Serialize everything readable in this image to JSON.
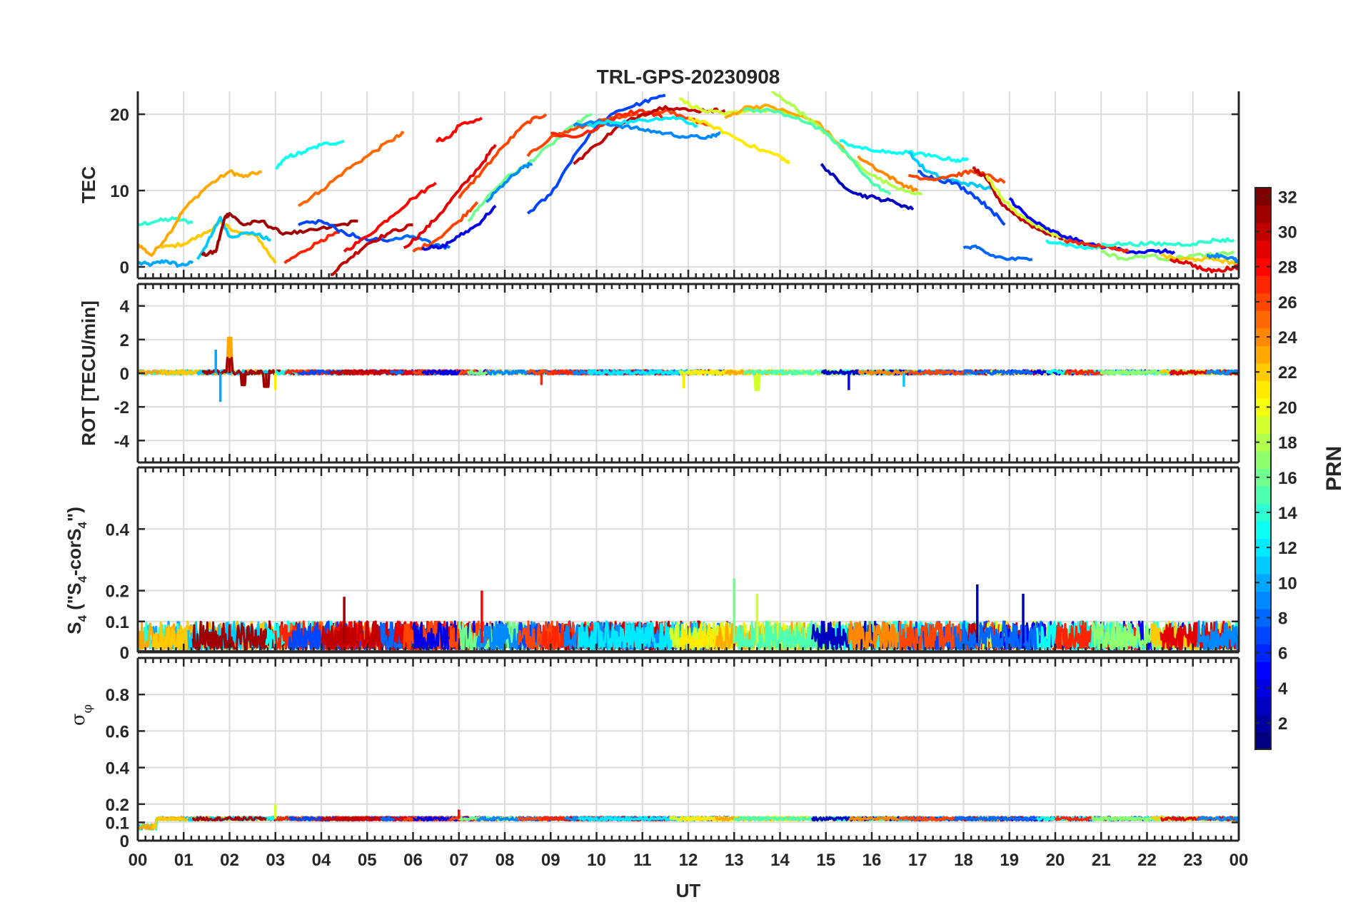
{
  "chart_data": [
    {
      "type": "line",
      "panel": "TEC",
      "title": "TRL-GPS-20230908",
      "ylabel": "TEC",
      "ylim": [
        -1.5,
        23
      ],
      "yticks": [
        0,
        10,
        20
      ],
      "ytick_labels": [
        "0",
        "10",
        "20"
      ],
      "xlim": [
        0,
        24
      ],
      "grid": true,
      "series": [
        {
          "prn": 10,
          "x": [
            0.0,
            0.3,
            0.6,
            0.9,
            1.2
          ],
          "y": [
            0.5,
            0.3,
            0.8,
            0.2,
            0.5
          ]
        },
        {
          "prn": 14,
          "x": [
            0.0,
            0.4,
            0.8,
            1.2
          ],
          "y": [
            5.5,
            6.0,
            6.3,
            5.8
          ]
        },
        {
          "prn": 23,
          "x": [
            0.0,
            0.3,
            0.7,
            1.0,
            1.5,
            2.0,
            2.3,
            2.7
          ],
          "y": [
            3.0,
            1.5,
            4.5,
            7.5,
            10.5,
            12.5,
            11.8,
            12.5
          ]
        },
        {
          "prn": 22,
          "x": [
            0.5,
            1.0,
            1.5,
            1.8,
            2.2,
            2.6,
            3.0
          ],
          "y": [
            2.5,
            3.0,
            4.5,
            5.8,
            4.5,
            4.0,
            0.5
          ]
        },
        {
          "prn": 11,
          "x": [
            1.3,
            1.6,
            1.8,
            2.0,
            2.5,
            2.9
          ],
          "y": [
            1.0,
            4.0,
            6.5,
            4.0,
            4.5,
            3.5
          ]
        },
        {
          "prn": 31,
          "x": [
            1.4,
            1.7,
            1.9,
            2.0,
            2.3,
            2.7,
            3.1,
            3.6,
            4.2,
            4.8
          ],
          "y": [
            1.5,
            2.0,
            6.5,
            7.0,
            5.5,
            6.0,
            4.5,
            4.5,
            5.2,
            6.0
          ]
        },
        {
          "prn": 13,
          "x": [
            3.0,
            3.3,
            3.6,
            4.0,
            4.5
          ],
          "y": [
            13.0,
            14.5,
            15.0,
            16.0,
            16.5
          ]
        },
        {
          "prn": 25,
          "x": [
            3.5,
            4.0,
            4.5,
            5.0,
            5.5,
            5.8
          ],
          "y": [
            8.0,
            10.0,
            12.5,
            14.5,
            16.5,
            17.5
          ]
        },
        {
          "prn": 27,
          "x": [
            3.2,
            3.6,
            4.0,
            4.4
          ],
          "y": [
            0.5,
            2.0,
            3.5,
            4.5
          ]
        },
        {
          "prn": 7,
          "x": [
            3.5,
            4.0,
            4.5,
            5.0,
            5.5
          ],
          "y": [
            5.5,
            6.0,
            4.5,
            3.5,
            3.5
          ]
        },
        {
          "prn": 28,
          "x": [
            4.5,
            5.0,
            5.5,
            6.0,
            6.5
          ],
          "y": [
            2.0,
            4.0,
            6.5,
            9.0,
            11.0
          ]
        },
        {
          "prn": 30,
          "x": [
            4.2,
            4.6,
            5.0,
            5.5,
            6.0
          ],
          "y": [
            -1.0,
            1.0,
            3.0,
            4.5,
            5.5
          ]
        },
        {
          "prn": 28,
          "x": [
            6.5,
            6.8,
            7.0,
            7.5
          ],
          "y": [
            16.5,
            17.0,
            18.5,
            19.5
          ]
        },
        {
          "prn": 8,
          "x": [
            5.5,
            6.0,
            6.4,
            6.8
          ],
          "y": [
            3.5,
            4.0,
            3.0,
            2.5
          ]
        },
        {
          "prn": 29,
          "x": [
            5.8,
            6.2,
            6.6,
            7.0,
            7.5,
            7.8
          ],
          "y": [
            2.5,
            4.5,
            7.0,
            10.0,
            13.5,
            16.0
          ]
        },
        {
          "prn": 26,
          "x": [
            6.0,
            6.5,
            7.0,
            7.4
          ],
          "y": [
            2.0,
            3.5,
            6.0,
            8.5
          ]
        },
        {
          "prn": 4,
          "x": [
            6.2,
            6.6,
            7.0,
            7.4,
            7.8
          ],
          "y": [
            2.5,
            2.5,
            4.0,
            5.5,
            8.0
          ]
        },
        {
          "prn": 26,
          "x": [
            7.0,
            7.5,
            8.0,
            8.5,
            8.9
          ],
          "y": [
            9.0,
            12.5,
            16.0,
            19.0,
            20.0
          ]
        },
        {
          "prn": 16,
          "x": [
            7.2,
            7.6,
            8.0,
            8.5,
            9.0,
            9.5,
            9.9
          ],
          "y": [
            6.0,
            9.0,
            11.5,
            13.5,
            16.0,
            18.5,
            20.0
          ]
        },
        {
          "prn": 9,
          "x": [
            7.6,
            8.0,
            8.4,
            8.6
          ],
          "y": [
            8.5,
            11.0,
            13.0,
            13.5
          ]
        },
        {
          "prn": 7,
          "x": [
            8.5,
            9.0,
            9.5,
            10.0,
            10.5,
            11.0,
            11.5
          ],
          "y": [
            7.0,
            9.5,
            14.5,
            18.5,
            20.5,
            21.5,
            22.5
          ]
        },
        {
          "prn": 26,
          "x": [
            8.5,
            9.0,
            9.5,
            10.0,
            10.5,
            11.0,
            11.5,
            12.0,
            12.5
          ],
          "y": [
            14.5,
            17.0,
            18.0,
            19.0,
            19.5,
            20.0,
            20.5,
            19.5,
            18.5
          ]
        },
        {
          "prn": 27,
          "x": [
            9.0,
            9.5,
            10.0,
            10.5,
            11.0,
            11.5
          ],
          "y": [
            17.5,
            17.0,
            18.0,
            20.0,
            20.5,
            19.5
          ]
        },
        {
          "prn": 30,
          "x": [
            9.5,
            10.0,
            10.5,
            11.0,
            11.5,
            12.0,
            12.5,
            12.8
          ],
          "y": [
            13.5,
            16.0,
            18.5,
            20.0,
            21.0,
            20.5,
            20.5,
            20.5
          ]
        },
        {
          "prn": 9,
          "x": [
            9.5,
            10.0,
            10.5,
            11.0,
            11.5,
            12.0,
            12.5,
            12.7
          ],
          "y": [
            18.5,
            19.0,
            18.5,
            18.0,
            17.5,
            17.0,
            17.0,
            17.5
          ]
        },
        {
          "prn": 12,
          "x": [
            9.8,
            10.3,
            10.8,
            11.3,
            11.8,
            12.2
          ],
          "y": [
            18.5,
            19.0,
            19.0,
            19.5,
            19.5,
            18.5
          ]
        },
        {
          "prn": 19,
          "x": [
            11.8,
            12.3,
            12.8,
            13.3,
            13.8,
            14.3,
            14.8
          ],
          "y": [
            22.0,
            20.5,
            20.0,
            20.5,
            20.5,
            20.0,
            19.0
          ]
        },
        {
          "prn": 21,
          "x": [
            12.0,
            12.5,
            13.0,
            13.5,
            14.0,
            14.2
          ],
          "y": [
            19.5,
            18.5,
            17.0,
            15.5,
            14.5,
            13.5
          ]
        },
        {
          "prn": 23,
          "x": [
            12.8,
            13.3,
            13.8,
            14.3,
            14.8,
            15.3,
            15.7
          ],
          "y": [
            19.5,
            21.0,
            21.0,
            20.0,
            19.0,
            16.0,
            13.0
          ]
        },
        {
          "prn": 18,
          "x": [
            13.8,
            14.2,
            14.6,
            15.0,
            15.5,
            16.0,
            16.5,
            17.1
          ],
          "y": [
            23.0,
            21.5,
            19.5,
            17.5,
            14.5,
            12.0,
            10.5,
            9.5
          ]
        },
        {
          "prn": 15,
          "x": [
            13.2,
            13.8,
            14.4,
            15.0,
            15.5,
            16.0,
            16.4
          ],
          "y": [
            20.5,
            20.5,
            19.5,
            17.5,
            14.5,
            11.0,
            9.5
          ]
        },
        {
          "prn": 13,
          "x": [
            15.3,
            15.8,
            16.3,
            16.8,
            17.3,
            17.8,
            18.1
          ],
          "y": [
            16.5,
            15.5,
            15.0,
            15.0,
            14.5,
            14.0,
            14.0
          ]
        },
        {
          "prn": 3,
          "x": [
            14.9,
            15.3,
            15.7,
            16.1,
            16.5,
            16.9
          ],
          "y": [
            13.5,
            11.0,
            9.5,
            9.0,
            8.5,
            7.5
          ]
        },
        {
          "prn": 24,
          "x": [
            15.7,
            16.2,
            16.6,
            17.0
          ],
          "y": [
            14.5,
            12.5,
            11.0,
            10.0
          ]
        },
        {
          "prn": 11,
          "x": [
            16.8,
            17.2,
            17.6,
            18.0,
            18.4,
            18.7
          ],
          "y": [
            15.0,
            12.5,
            11.5,
            11.0,
            10.5,
            10.0
          ]
        },
        {
          "prn": 7,
          "x": [
            17.0,
            17.4,
            17.8,
            18.2,
            18.6,
            18.9
          ],
          "y": [
            12.5,
            11.5,
            11.0,
            9.5,
            7.5,
            5.5
          ]
        },
        {
          "prn": 26,
          "x": [
            16.8,
            17.3,
            17.8,
            18.2,
            18.5,
            18.9
          ],
          "y": [
            12.0,
            11.5,
            12.0,
            12.5,
            12.0,
            11.0
          ]
        },
        {
          "prn": 30,
          "x": [
            18.2,
            18.5,
            18.8,
            19.2,
            19.6,
            20.0,
            20.4
          ],
          "y": [
            13.0,
            11.5,
            8.5,
            6.5,
            5.0,
            4.0,
            3.5
          ]
        },
        {
          "prn": 19,
          "x": [
            18.5,
            18.9,
            19.3,
            19.7,
            20.1,
            20.6,
            21.0
          ],
          "y": [
            12.0,
            8.5,
            6.5,
            5.0,
            4.0,
            3.0,
            2.5
          ]
        },
        {
          "prn": 5,
          "x": [
            19.0,
            19.4,
            19.8,
            20.2,
            20.7,
            21.2,
            21.7,
            22.2,
            22.6
          ],
          "y": [
            9.0,
            6.5,
            5.0,
            4.0,
            3.0,
            2.5,
            2.0,
            2.0,
            2.0
          ]
        },
        {
          "prn": 8,
          "x": [
            18.0,
            18.3,
            18.6,
            19.0,
            19.5
          ],
          "y": [
            2.5,
            2.5,
            1.5,
            1.0,
            1.0
          ]
        },
        {
          "prn": 13,
          "x": [
            19.8,
            20.2,
            20.6,
            21.0
          ],
          "y": [
            3.5,
            3.0,
            2.5,
            2.5
          ]
        },
        {
          "prn": 27,
          "x": [
            20.2,
            20.7,
            21.2,
            21.6
          ],
          "y": [
            3.5,
            3.0,
            2.5,
            2.0
          ]
        },
        {
          "prn": 14,
          "x": [
            21.0,
            21.5,
            22.0,
            22.5,
            23.0,
            23.5,
            23.9
          ],
          "y": [
            3.0,
            3.0,
            3.0,
            3.0,
            3.0,
            3.5,
            3.5
          ]
        },
        {
          "prn": 17,
          "x": [
            21.0,
            21.5,
            22.0,
            22.5,
            23.0,
            23.5,
            23.9
          ],
          "y": [
            2.0,
            1.0,
            1.5,
            1.0,
            1.5,
            1.5,
            2.0
          ]
        },
        {
          "prn": 22,
          "x": [
            22.3,
            22.7,
            23.1,
            23.5,
            23.9,
            24.0
          ],
          "y": [
            1.5,
            1.0,
            1.0,
            1.0,
            0.5,
            0.5
          ]
        },
        {
          "prn": 29,
          "x": [
            22.5,
            22.9,
            23.3,
            23.6,
            23.9,
            24.0
          ],
          "y": [
            1.0,
            0.5,
            -0.5,
            -0.5,
            0.0,
            0.0
          ]
        },
        {
          "prn": 9,
          "x": [
            23.3,
            23.6,
            23.9,
            24.0
          ],
          "y": [
            1.5,
            1.5,
            1.0,
            0.5
          ]
        }
      ]
    },
    {
      "type": "line",
      "panel": "ROT",
      "ylabel": "ROT [TECU/min]",
      "ylim": [
        -5.3,
        5.3
      ],
      "yticks": [
        -4,
        -2,
        0,
        2,
        4
      ],
      "ytick_labels": [
        "-4",
        "-2",
        "0",
        "2",
        "4"
      ],
      "xlim": [
        0,
        24
      ],
      "grid": true,
      "noise_level": 0.06,
      "spikes": [
        {
          "x": 1.7,
          "y": 1.4,
          "prn": 10
        },
        {
          "x": 1.8,
          "y": -1.7,
          "prn": 10
        },
        {
          "x": 2.0,
          "y": 2.1,
          "prn": 23
        },
        {
          "x": 2.0,
          "y": 0.9,
          "prn": 31
        },
        {
          "x": 2.3,
          "y": -0.7,
          "prn": 31
        },
        {
          "x": 2.8,
          "y": -0.8,
          "prn": 31
        },
        {
          "x": 3.0,
          "y": -1.0,
          "prn": 21
        },
        {
          "x": 8.8,
          "y": -0.7,
          "prn": 27
        },
        {
          "x": 11.9,
          "y": -0.9,
          "prn": 21
        },
        {
          "x": 13.5,
          "y": -1.0,
          "prn": 19
        },
        {
          "x": 15.5,
          "y": -1.0,
          "prn": 5
        },
        {
          "x": 16.7,
          "y": -0.8,
          "prn": 11
        }
      ]
    },
    {
      "type": "line",
      "panel": "S4",
      "ylabel": "S_4 (\"S_4-corS_4\")",
      "ylabel_parts": [
        "S",
        "4",
        " (\"S",
        "4",
        "-corS",
        "4",
        "\")"
      ],
      "ylim": [
        0,
        0.6
      ],
      "yticks": [
        0,
        0.1,
        0.2,
        0.4
      ],
      "ytick_labels": [
        "0",
        "0.1",
        "0.2",
        "0.4"
      ],
      "xlim": [
        0,
        24
      ],
      "grid": true,
      "typical_range": [
        0.01,
        0.1
      ],
      "spikes": [
        {
          "x": 4.5,
          "y": 0.18,
          "prn": 31
        },
        {
          "x": 7.5,
          "y": 0.2,
          "prn": 28
        },
        {
          "x": 13.0,
          "y": 0.24,
          "prn": 16
        },
        {
          "x": 13.5,
          "y": 0.19,
          "prn": 19
        },
        {
          "x": 18.3,
          "y": 0.22,
          "prn": 3
        },
        {
          "x": 19.3,
          "y": 0.19,
          "prn": 3
        }
      ]
    },
    {
      "type": "line",
      "panel": "sigma_phi",
      "ylabel": "σ",
      "ylabel_sub": "φ",
      "ylim": [
        0,
        1.0
      ],
      "yticks": [
        0,
        0.1,
        0.2,
        0.4,
        0.6,
        0.8
      ],
      "ytick_labels": [
        "0",
        "0.1",
        "0.2",
        "0.4",
        "0.6",
        "0.8"
      ],
      "xlim": [
        0,
        24
      ],
      "xticks": [
        0,
        1,
        2,
        3,
        4,
        5,
        6,
        7,
        8,
        9,
        10,
        11,
        12,
        13,
        14,
        15,
        16,
        17,
        18,
        19,
        20,
        21,
        22,
        23,
        24
      ],
      "xtick_labels": [
        "00",
        "01",
        "02",
        "03",
        "04",
        "05",
        "06",
        "07",
        "08",
        "09",
        "10",
        "11",
        "12",
        "13",
        "14",
        "15",
        "16",
        "17",
        "18",
        "19",
        "20",
        "21",
        "22",
        "23",
        "00"
      ],
      "xlabel": "UT",
      "grid": true,
      "baseline": 0.12,
      "spikes": [
        {
          "x": 3.0,
          "y": 0.2,
          "prn": 19
        },
        {
          "x": 7.0,
          "y": 0.17,
          "prn": 28
        }
      ]
    }
  ],
  "colorbar": {
    "label": "PRN",
    "range": [
      1,
      32
    ],
    "ticks": [
      2,
      4,
      6,
      8,
      10,
      12,
      14,
      16,
      18,
      20,
      22,
      24,
      26,
      28,
      30,
      32
    ],
    "tick_labels": [
      "2",
      "4",
      "6",
      "8",
      "10",
      "12",
      "14",
      "16",
      "18",
      "20",
      "22",
      "24",
      "26",
      "28",
      "30",
      "32"
    ],
    "colormap": "jet",
    "colormap_stops": [
      "#00008f",
      "#0000ff",
      "#00ffff",
      "#ffff00",
      "#ff0000",
      "#800000"
    ]
  }
}
